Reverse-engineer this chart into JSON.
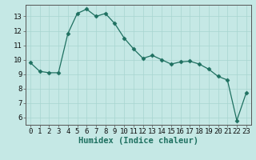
{
  "xlabel": "Humidex (Indice chaleur)",
  "x": [
    0,
    1,
    2,
    3,
    4,
    5,
    6,
    7,
    8,
    9,
    10,
    11,
    12,
    13,
    14,
    15,
    16,
    17,
    18,
    19,
    20,
    21,
    22,
    23
  ],
  "y": [
    9.8,
    9.2,
    9.1,
    9.1,
    11.8,
    13.2,
    13.5,
    13.0,
    13.2,
    12.5,
    11.5,
    10.75,
    10.1,
    10.3,
    10.0,
    9.7,
    9.85,
    9.9,
    9.7,
    9.35,
    8.85,
    8.6,
    5.8,
    7.7
  ],
  "line_color": "#1e7060",
  "marker": "D",
  "marker_size": 2.5,
  "background_color": "#c5e8e5",
  "grid_color": "#a8d5d0",
  "ylim": [
    5.5,
    13.8
  ],
  "xlim": [
    -0.5,
    23.5
  ],
  "yticks": [
    6,
    7,
    8,
    9,
    10,
    11,
    12,
    13
  ],
  "xticks": [
    0,
    1,
    2,
    3,
    4,
    5,
    6,
    7,
    8,
    9,
    10,
    11,
    12,
    13,
    14,
    15,
    16,
    17,
    18,
    19,
    20,
    21,
    22,
    23
  ],
  "tick_label_fontsize": 6.5,
  "xlabel_fontsize": 7.5
}
